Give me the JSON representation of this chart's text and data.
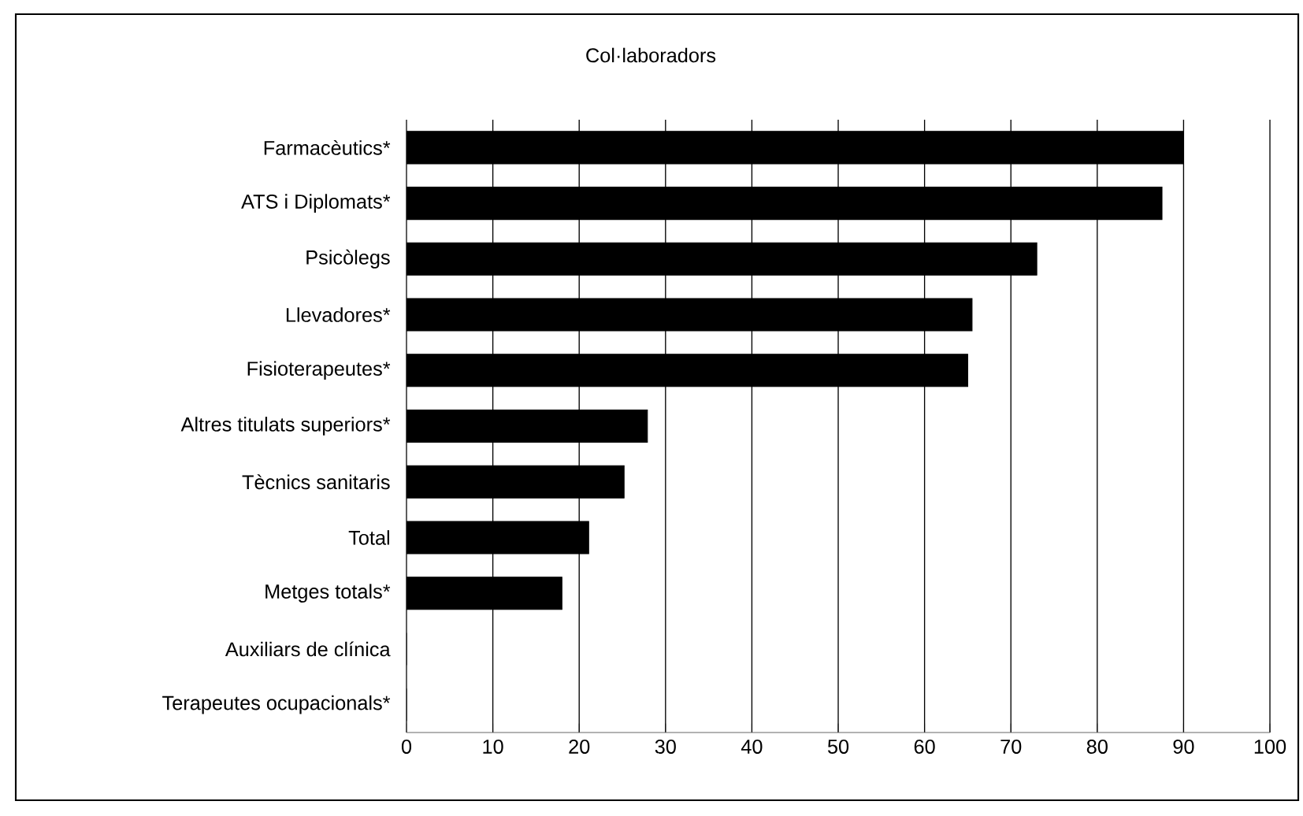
{
  "chart_data": {
    "type": "bar",
    "orientation": "horizontal",
    "title": "Col·laboradors",
    "categories": [
      "Farmacèutics*",
      "ATS i Diplomats*",
      "Psicòlegs",
      "Llevadores*",
      "Fisioterapeutes*",
      "Altres titulats superiors*",
      "Tècnics sanitaris",
      "Total",
      "Metges totals*",
      "Auxiliars de clínica",
      "Terapeutes ocupacionals*"
    ],
    "values": [
      90,
      87.5,
      73,
      65.5,
      65,
      27.9,
      25.2,
      21.1,
      18,
      0,
      0
    ],
    "color": "#000000",
    "xlim": [
      0,
      100
    ],
    "xticks": [
      0,
      10,
      20,
      30,
      40,
      50,
      60,
      70,
      80,
      90,
      100
    ],
    "grid": "x"
  }
}
